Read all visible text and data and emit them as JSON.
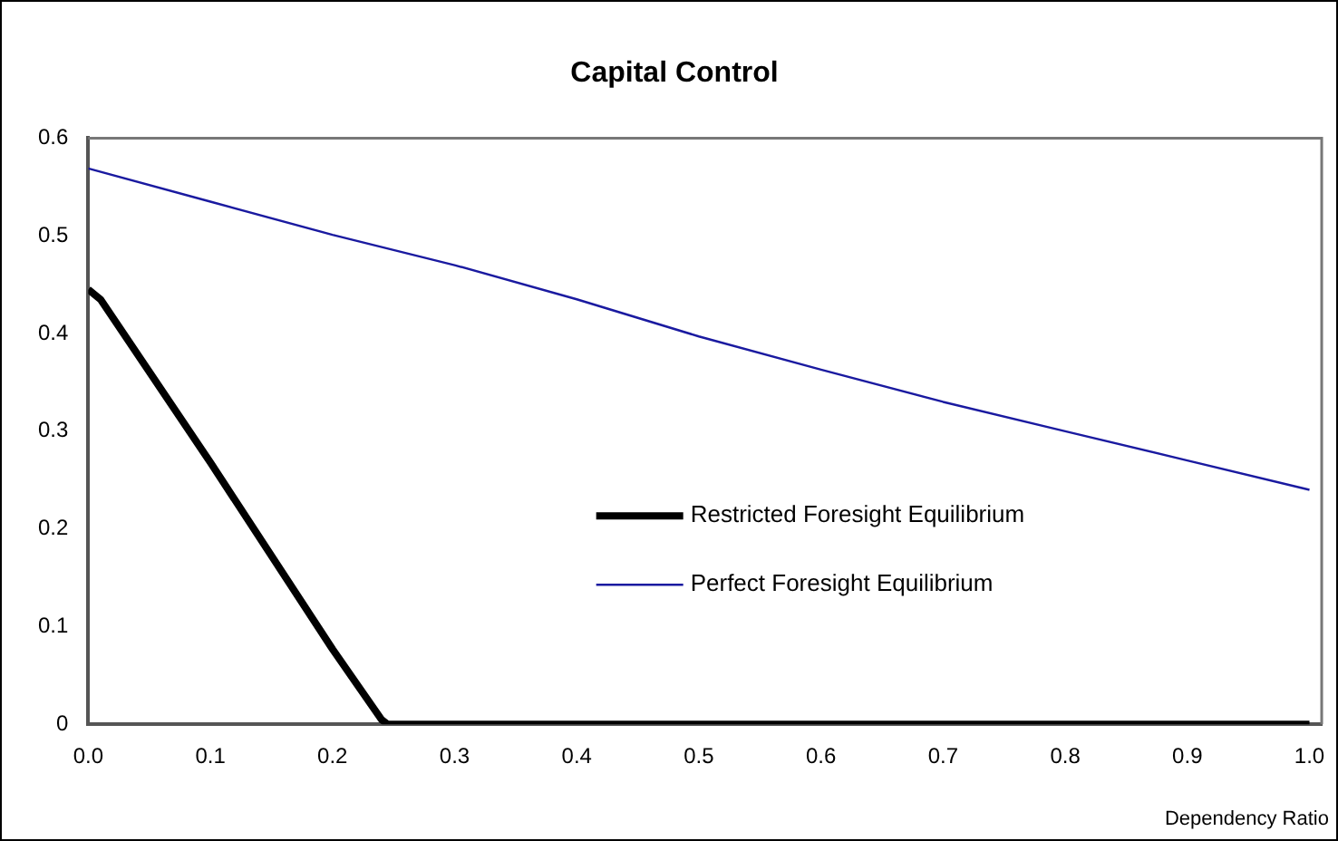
{
  "chart_data": {
    "type": "line",
    "title": "Capital Control",
    "xlabel": "Dependency Ratio",
    "xlim": [
      0,
      1.01
    ],
    "xticks": [
      {
        "value": 0,
        "label": "0.0"
      },
      0.1,
      0.2,
      0.3,
      0.4,
      0.5,
      0.6,
      0.7,
      0.8,
      0.9,
      {
        "value": 1,
        "label": "1.0"
      }
    ],
    "ylim": [
      0,
      0.6
    ],
    "yticks": [
      0,
      0.1,
      0.2,
      0.3,
      0.4,
      0.5,
      0.6
    ],
    "grid": false,
    "legend": "bottom right",
    "marker": "none",
    "line_style": "solid",
    "series": [
      {
        "name": "Restricted Foresight Equilibrium",
        "color": "#000000",
        "x": [
          0,
          0.01,
          0.1,
          0.2,
          0.24,
          0.245,
          1.0
        ],
        "values": [
          0.445,
          0.435,
          0.268,
          0.077,
          0.005,
          0,
          0
        ]
      },
      {
        "name": "Perfect Foresight Equilibrium",
        "color": "#1a1aa0",
        "x": [
          0,
          0.1,
          0.2,
          0.3,
          0.4,
          0.5,
          0.6,
          0.7,
          0.8,
          0.9,
          1.0
        ],
        "values": [
          0.569,
          0.535,
          0.501,
          0.47,
          0.435,
          0.397,
          0.363,
          0.33,
          0.3,
          0.27,
          0.24
        ]
      }
    ]
  }
}
